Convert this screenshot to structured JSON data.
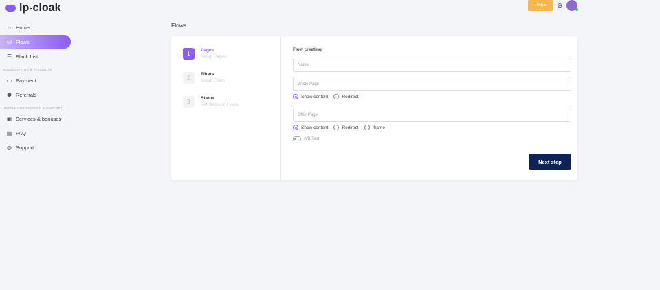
{
  "app": {
    "name": "lp-cloak"
  },
  "sidebar": {
    "items": [
      {
        "label": "Home",
        "icon": "home-icon",
        "glyph": "⌂"
      },
      {
        "label": "Flows",
        "icon": "flows-icon",
        "glyph": "⛁"
      },
      {
        "label": "Black List",
        "icon": "list-icon",
        "glyph": "☰"
      }
    ],
    "section1": "SUBSCRIPTION & PAYMENTS",
    "items2": [
      {
        "label": "Payment",
        "icon": "card-icon",
        "glyph": "▭"
      },
      {
        "label": "Referrals",
        "icon": "referrals-icon",
        "glyph": "⚉"
      }
    ],
    "section2": "USEFUL INFORMATION & SUPPORT",
    "items3": [
      {
        "label": "Services & bonuses",
        "icon": "gift-icon",
        "glyph": "▣"
      },
      {
        "label": "FAQ",
        "icon": "faq-icon",
        "glyph": "▤"
      },
      {
        "label": "Support",
        "icon": "support-icon",
        "glyph": "◍"
      }
    ]
  },
  "header": {
    "plan": "FREE",
    "globe": "⊕"
  },
  "page": {
    "title": "Flows"
  },
  "steps": [
    {
      "num": "1",
      "title": "Pages",
      "sub": "Setup Pages"
    },
    {
      "num": "2",
      "title": "Filters",
      "sub": "Setup Filters"
    },
    {
      "num": "3",
      "title": "Status",
      "sub": "Set status of Flows"
    }
  ],
  "form": {
    "title": "Flow creating",
    "name_placeholder": "Name",
    "white_placeholder": "White Page",
    "offer_placeholder": "Offer Page",
    "white_options": [
      "Show content",
      "Redirect"
    ],
    "offer_options": [
      "Show content",
      "Redirect",
      "Iframe"
    ],
    "ab_test": "A/B Test",
    "next": "Next step"
  },
  "colors": {
    "accent": "#8a5cf0",
    "button": "#0f2456",
    "free": "#f7b84b"
  }
}
